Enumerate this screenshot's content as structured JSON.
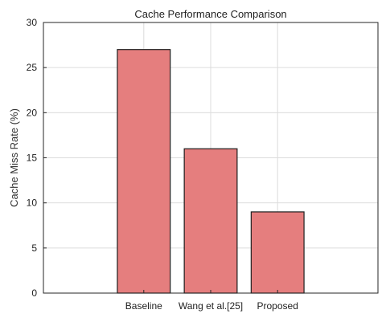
{
  "chart_data": {
    "type": "bar",
    "title": "Cache Performance Comparison",
    "xlabel": "",
    "ylabel": "Cache Miss Rate (%)",
    "categories": [
      "Baseline",
      "Wang et al.[25]",
      "Proposed"
    ],
    "values": [
      27,
      16,
      9
    ],
    "ylim": [
      0,
      30
    ],
    "yticks": [
      0,
      5,
      10,
      15,
      20,
      25,
      30
    ],
    "grid": true,
    "bar_color": "#e57e7e",
    "legend": "none"
  }
}
